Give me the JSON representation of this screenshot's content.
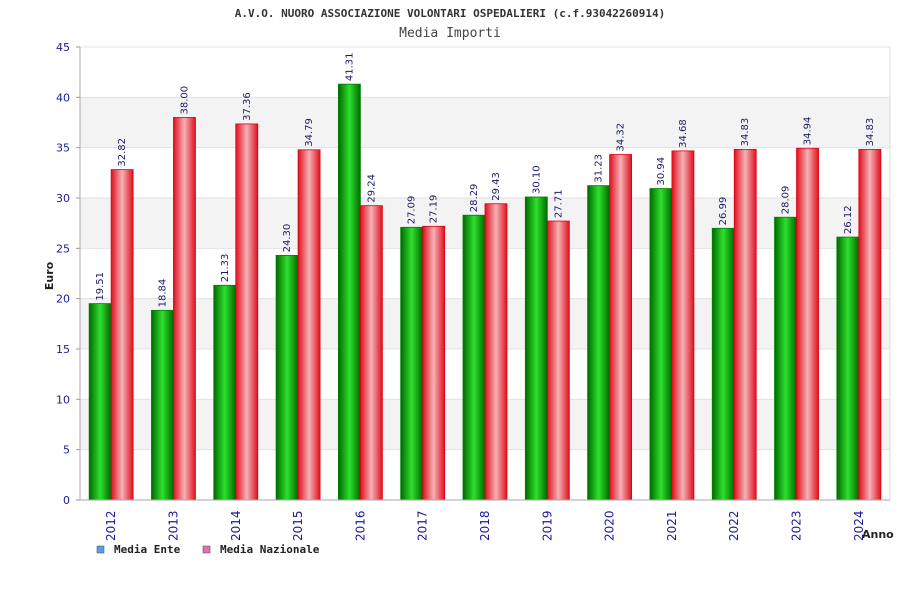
{
  "chart_data": {
    "type": "bar",
    "title": "A.V.O. NUORO ASSOCIAZIONE VOLONTARI OSPEDALIERI (c.f.93042260914)",
    "subtitle": "Media Importi",
    "xlabel": "Anno",
    "ylabel": "Euro",
    "ylim": [
      0,
      45
    ],
    "yticks": [
      0,
      5,
      10,
      15,
      20,
      25,
      30,
      35,
      40,
      45
    ],
    "grid": true,
    "legend_position": "bottom-left",
    "categories": [
      "2012",
      "2013",
      "2014",
      "2015",
      "2016",
      "2017",
      "2018",
      "2019",
      "2020",
      "2021",
      "2022",
      "2023",
      "2024"
    ],
    "series": [
      {
        "name": "Media Ente",
        "values": [
          19.51,
          18.84,
          21.33,
          24.3,
          41.31,
          27.09,
          28.29,
          30.1,
          31.23,
          30.94,
          26.99,
          28.09,
          26.12
        ],
        "labels": [
          "19.51",
          "18.84",
          "21.33",
          "24.30",
          "41.31",
          "27.09",
          "28.29",
          "30.10",
          "31.23",
          "30.94",
          "26.99",
          "28.09",
          "26.12"
        ],
        "color": "#00b000",
        "legend_color": "#5aa0e8"
      },
      {
        "name": "Media Nazionale",
        "values": [
          32.82,
          38.0,
          37.36,
          34.79,
          29.24,
          27.19,
          29.43,
          27.71,
          34.32,
          34.68,
          34.83,
          34.94,
          34.83
        ],
        "labels": [
          "32.82",
          "38.00",
          "37.36",
          "34.79",
          "29.24",
          "27.19",
          "29.43",
          "27.71",
          "34.32",
          "34.68",
          "34.83",
          "34.94",
          "34.83"
        ],
        "color": "#ee1c2c",
        "legend_color": "#e070b0"
      }
    ]
  }
}
